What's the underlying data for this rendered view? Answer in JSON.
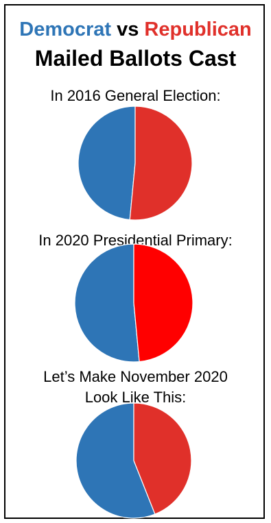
{
  "header": {
    "democrat_word": "Democrat",
    "vs_word": "vs",
    "republican_word": "Republican",
    "line2": "Mailed Ballots Cast"
  },
  "colors": {
    "democrat": "#2e75b6",
    "republican": "#e0302a",
    "republican_bright": "#ff0000",
    "border": "#000000"
  },
  "chart_data": [
    {
      "type": "pie",
      "title": "In 2016 General Election:",
      "labels": [
        "Democrat",
        "Republican"
      ],
      "values": [
        48.5,
        51.5
      ]
    },
    {
      "type": "pie",
      "title": "In 2020 Presidential Primary:",
      "labels": [
        "Democrat",
        "Republican"
      ],
      "values": [
        51.5,
        48.5
      ]
    },
    {
      "type": "pie",
      "title": "Let’s Make November 2020\nLook Like This:",
      "labels": [
        "Democrat",
        "Republican"
      ],
      "values": [
        56,
        44
      ]
    }
  ]
}
